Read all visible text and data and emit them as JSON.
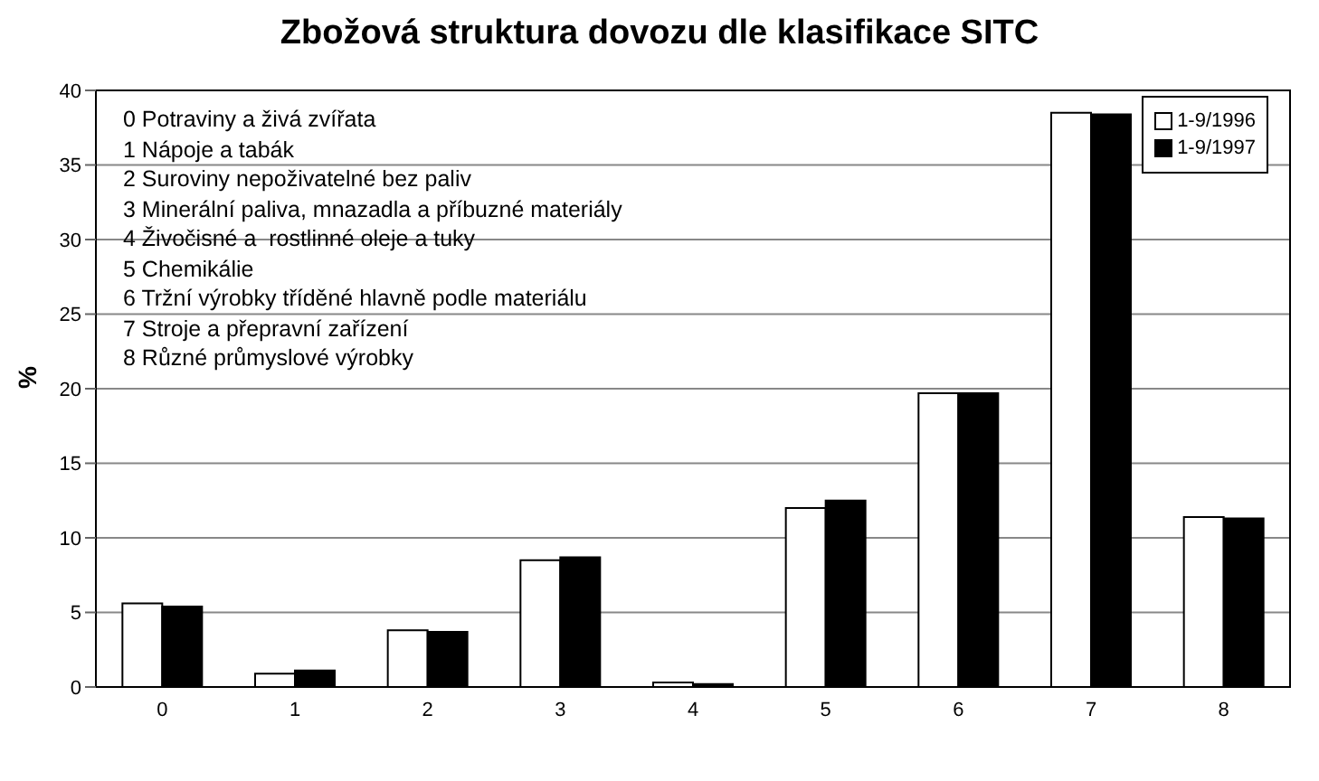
{
  "chart_data": {
    "type": "bar",
    "title": "Zbožová struktura dovozu dle klasifikace SITC",
    "ylabel": "%",
    "categories": [
      "0",
      "1",
      "2",
      "3",
      "4",
      "5",
      "6",
      "7",
      "8"
    ],
    "series": [
      {
        "name": "1-9/1996",
        "color": "#ffffff",
        "values": [
          5.6,
          0.9,
          3.8,
          8.5,
          0.3,
          12.0,
          19.7,
          38.5,
          11.4
        ]
      },
      {
        "name": "1-9/1997",
        "color": "#000000",
        "values": [
          5.4,
          1.1,
          3.7,
          8.7,
          0.2,
          12.5,
          19.7,
          38.4,
          11.3
        ]
      }
    ],
    "ylim": [
      0,
      40
    ],
    "yticks": [
      0,
      5,
      10,
      15,
      20,
      25,
      30,
      35,
      40
    ],
    "grid": "y",
    "legend": "top right",
    "annotations": [
      "0 Potraviny a živá zvířata",
      "1 Nápoje a tabák",
      "2 Suroviny nepoživatelné bez paliv",
      "3 Minerální paliva, mnazadla a příbuzné materiály",
      "4 Živočisné a  rostlinné oleje a tuky",
      "5 Chemikálie",
      "6 Tržní výrobky tříděné hlavně podle materiálu",
      "7 Stroje a přepravní zařízení",
      "8 Různé průmyslové výrobky"
    ]
  }
}
